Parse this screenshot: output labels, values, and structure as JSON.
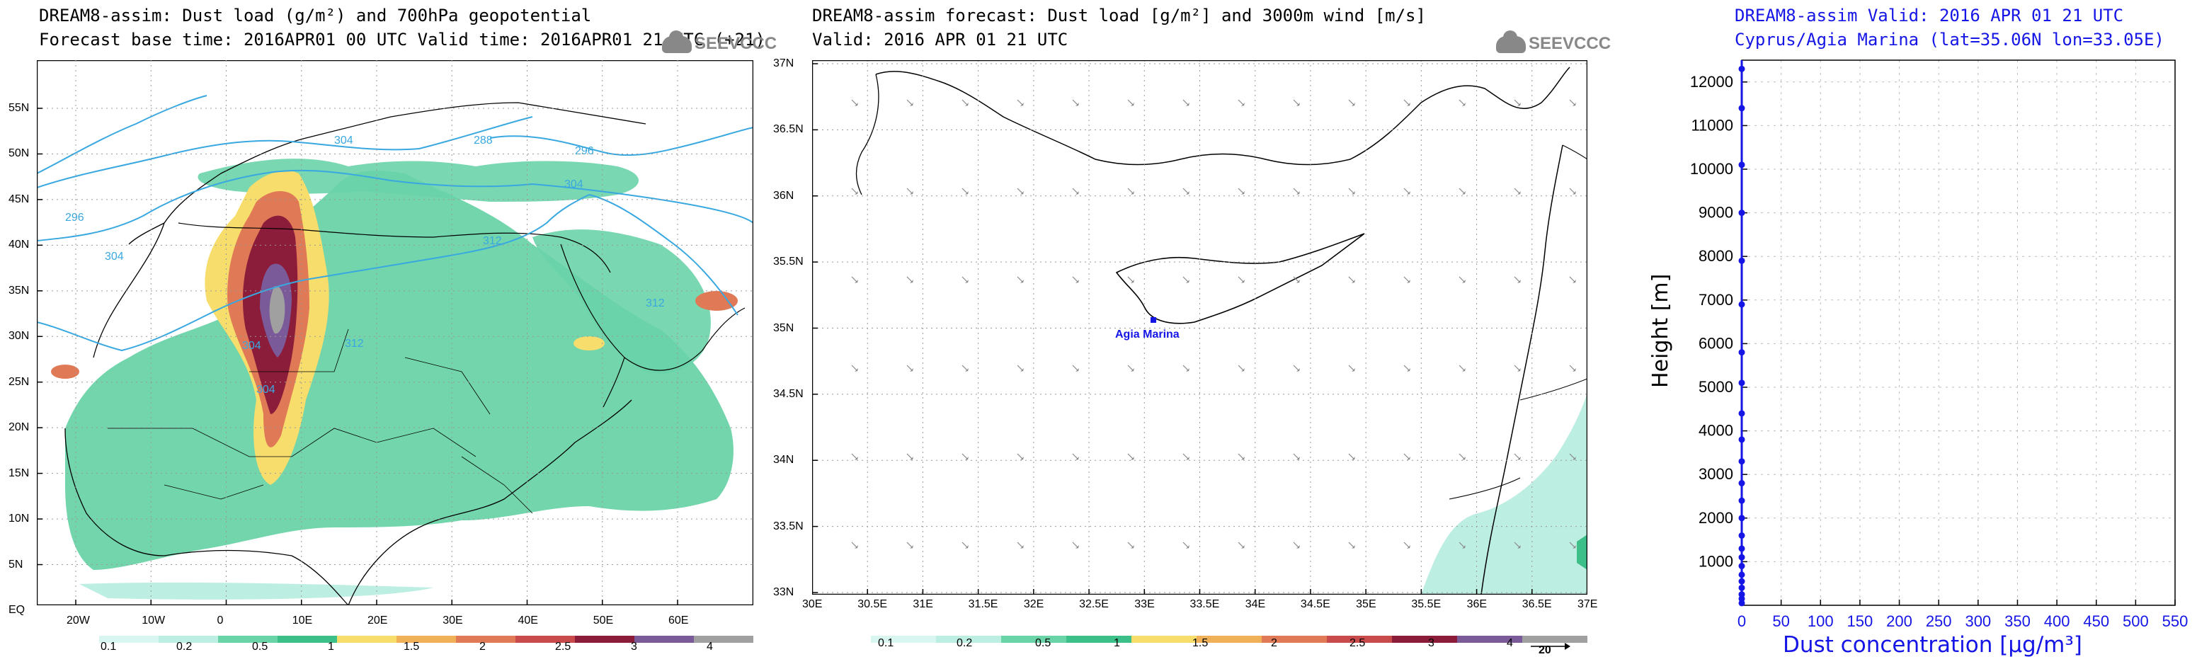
{
  "colors": {
    "scale": [
      "#d9f5ef",
      "#bdeee2",
      "#6ad3a8",
      "#3dbf8a",
      "#f7dd6c",
      "#efb058",
      "#e07a56",
      "#c94a4b",
      "#8c1d3a",
      "#7b5a9a",
      "#a0a0a0"
    ],
    "contour": "#39a8e0",
    "blue_text": "#1515e6"
  },
  "panel1": {
    "title": "DREAM8-assim: Dust load (g/m²) and 700hPa geopotential",
    "subtitle": "Forecast base time: 2016APR01 00 UTC   Valid time: 2016APR01 21 UTC  (+21)",
    "logo": "SEEVCCC",
    "lat_ticks": [
      "55N",
      "50N",
      "45N",
      "40N",
      "35N",
      "30N",
      "25N",
      "20N",
      "15N",
      "10N",
      "5N",
      "EQ"
    ],
    "lon_ticks": [
      "20W",
      "10W",
      "0",
      "10E",
      "20E",
      "30E",
      "40E",
      "50E",
      "60E"
    ],
    "contour_labels": [
      "304",
      "288",
      "296",
      "304",
      "296",
      "304",
      "312",
      "312",
      "304",
      "312",
      "304"
    ],
    "colorbar_labels": [
      "0.1",
      "0.2",
      "0.5",
      "1",
      "1.5",
      "2",
      "2.5",
      "3",
      "4"
    ]
  },
  "panel2": {
    "title": "DREAM8-assim forecast: Dust load [g/m²] and 3000m wind [m/s]",
    "subtitle": "Valid: 2016 APR 01   21 UTC",
    "logo": "SEEVCCC",
    "lat_ticks": [
      "37N",
      "36.5N",
      "36N",
      "35.5N",
      "35N",
      "34.5N",
      "34N",
      "33.5N",
      "33N"
    ],
    "lon_ticks": [
      "30E",
      "30.5E",
      "31E",
      "31.5E",
      "32E",
      "32.5E",
      "33E",
      "33.5E",
      "34E",
      "34.5E",
      "35E",
      "35.5E",
      "36E",
      "36.5E",
      "37E"
    ],
    "station_label": "Agia Marina",
    "colorbar_labels": [
      "0.1",
      "0.2",
      "0.5",
      "1",
      "1.5",
      "2",
      "2.5",
      "3",
      "4"
    ],
    "wind_ref": "20"
  },
  "panel3": {
    "title": "DREAM8-assim   Valid: 2016 APR 01   21 UTC",
    "subtitle": "Cyprus/Agia Marina (lat=35.06N lon=33.05E)"
  },
  "chart_data": [
    {
      "type": "heatmap",
      "title": "DREAM8-assim: Dust load (g/m²) and 700hPa geopotential",
      "xlabel": "",
      "ylabel": "",
      "x_ticks": [
        "20W",
        "10W",
        "0",
        "10E",
        "20E",
        "30E",
        "40E",
        "50E",
        "60E"
      ],
      "y_ticks": [
        "EQ",
        "5N",
        "10N",
        "15N",
        "20N",
        "25N",
        "30N",
        "35N",
        "40N",
        "45N",
        "50N",
        "55N"
      ],
      "legend_levels": [
        0.1,
        0.2,
        0.5,
        1,
        1.5,
        2,
        2.5,
        3,
        4
      ]
    },
    {
      "type": "heatmap",
      "title": "DREAM8-assim forecast: Dust load [g/m²] and 3000m wind [m/s]",
      "xlim": [
        30,
        37
      ],
      "ylim": [
        33,
        37
      ],
      "legend_levels": [
        0.1,
        0.2,
        0.5,
        1,
        1.5,
        2,
        2.5,
        3,
        4
      ],
      "station": {
        "name": "Agia Marina",
        "lat": 35.06,
        "lon": 33.05
      }
    },
    {
      "type": "line",
      "title": "DREAM8-assim   Valid: 2016 APR 01   21 UTC",
      "xlabel": "Dust concentration [μg/m³]",
      "ylabel": "Height [m]",
      "xlim": [
        0,
        550
      ],
      "ylim": [
        0,
        12500
      ],
      "x_ticks": [
        0,
        50,
        100,
        150,
        200,
        250,
        300,
        350,
        400,
        450,
        500,
        550
      ],
      "y_ticks": [
        1000,
        2000,
        3000,
        4000,
        5000,
        6000,
        7000,
        8000,
        9000,
        10000,
        11000,
        12000
      ],
      "series": [
        {
          "x": [
            0,
            0,
            0,
            0,
            0,
            0,
            0,
            0,
            0,
            0,
            0,
            0,
            0,
            0,
            0,
            0,
            0,
            0,
            0,
            0,
            0,
            0,
            0,
            0,
            0,
            0
          ],
          "y": [
            50,
            150,
            250,
            400,
            550,
            700,
            900,
            1100,
            1300,
            1600,
            2000,
            2400,
            2800,
            3300,
            3800,
            4400,
            5100,
            5800,
            6900,
            7900,
            9000,
            10100,
            11400,
            12300,
            12500,
            12500
          ]
        }
      ]
    }
  ]
}
